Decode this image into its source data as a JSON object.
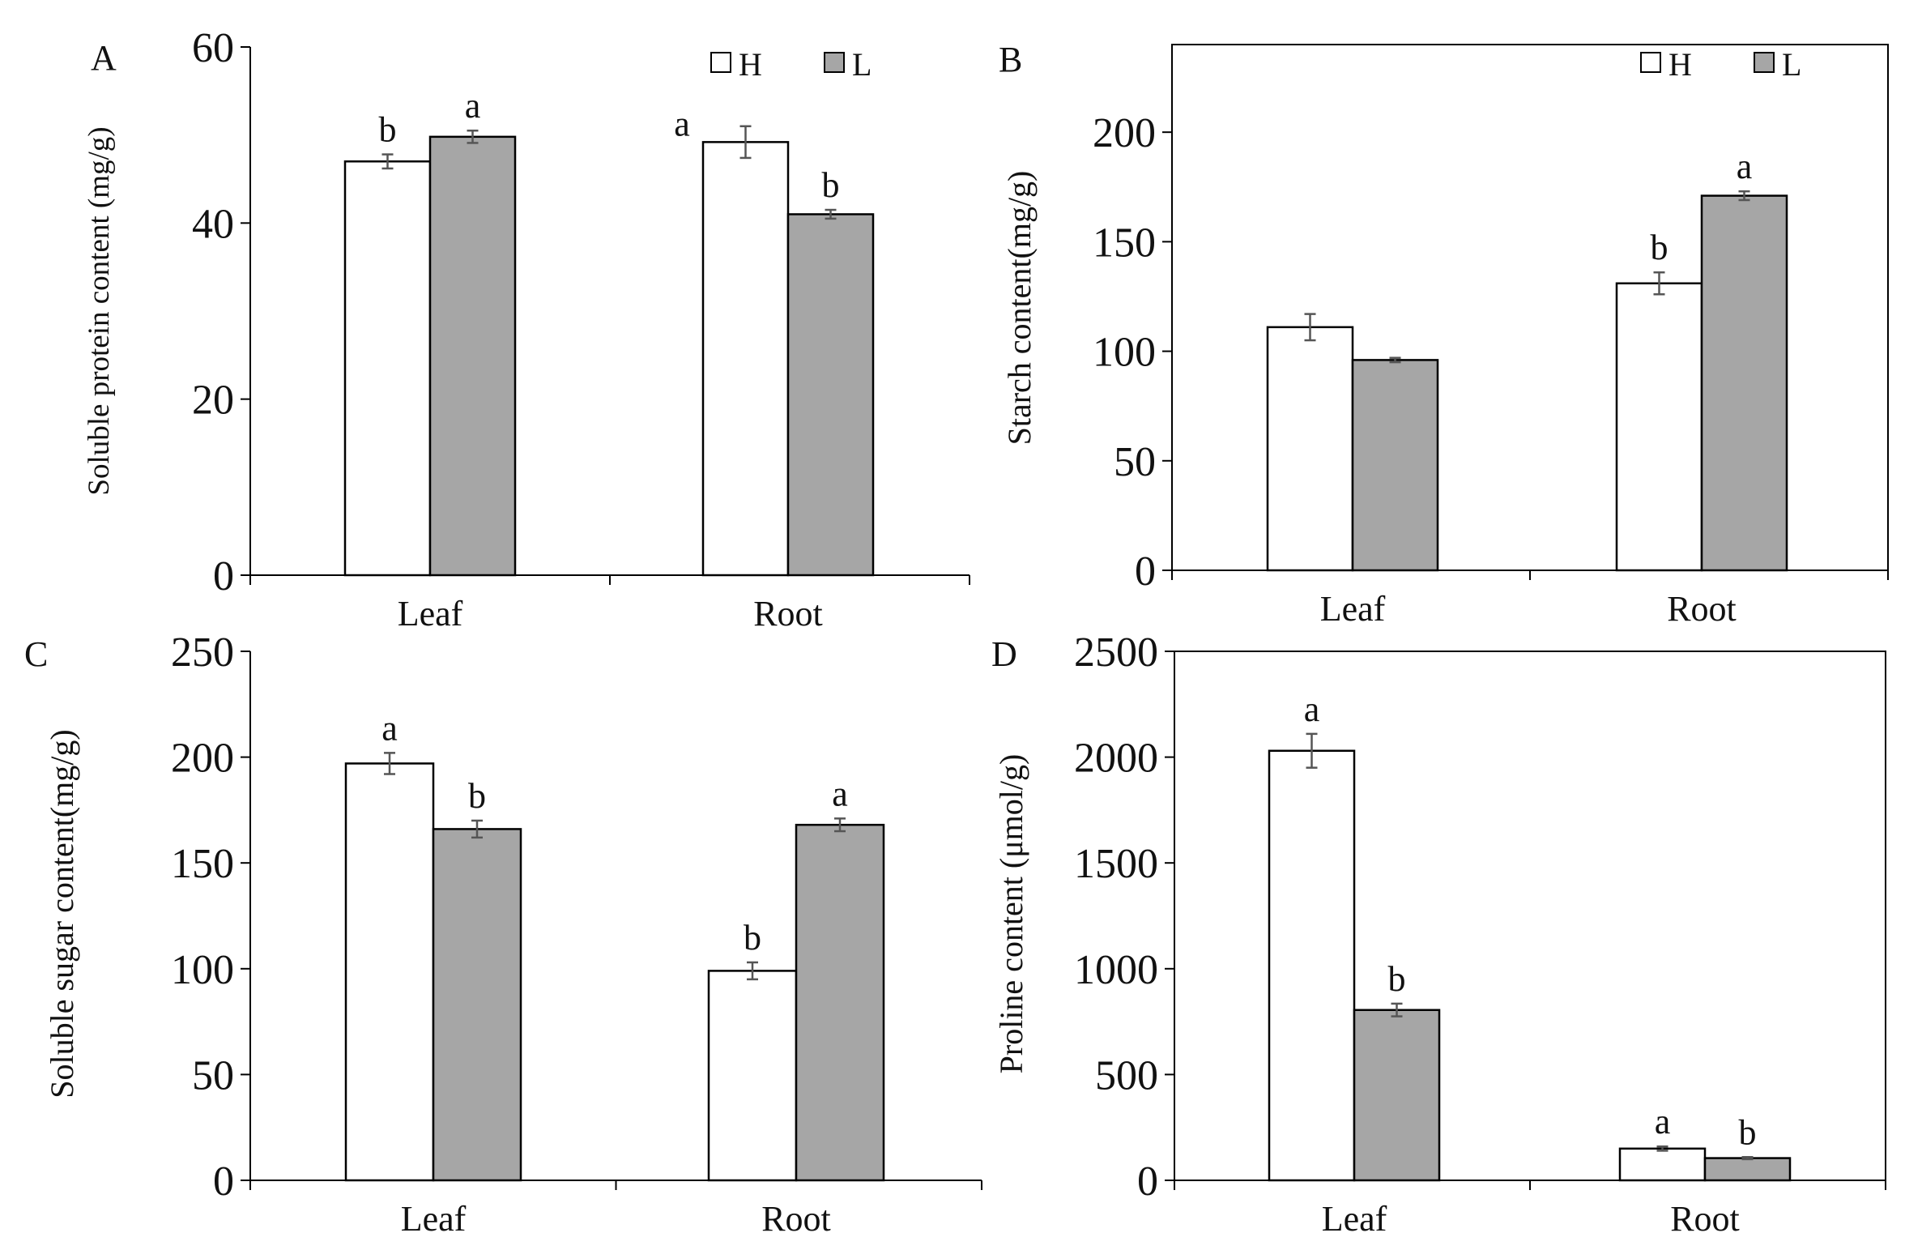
{
  "colors": {
    "H": "#ffffff",
    "L": "#a6a6a6",
    "stroke": "#000000",
    "error": "#555555"
  },
  "chart_data": [
    {
      "panel": "A",
      "type": "bar",
      "ylabel": "Soluble protein content (mg/g)",
      "ylim": [
        0,
        60
      ],
      "yticks": [
        "0",
        "20",
        "40",
        "60"
      ],
      "categories": [
        "Leaf",
        "Root"
      ],
      "legend": [
        "H",
        "L"
      ],
      "series": [
        {
          "name": "H",
          "values": [
            47,
            49.2
          ],
          "errors": [
            0.8,
            1.8
          ],
          "labels": [
            "b",
            "a"
          ]
        },
        {
          "name": "L",
          "values": [
            49.8,
            41
          ],
          "errors": [
            0.7,
            0.5
          ],
          "labels": [
            "a",
            "b"
          ]
        }
      ]
    },
    {
      "panel": "B",
      "type": "bar",
      "ylabel": "Starch content(mg/g)",
      "ylim": [
        0,
        240
      ],
      "yticks": [
        "0",
        "50",
        "100",
        "150",
        "200"
      ],
      "categories": [
        "Leaf",
        "Root"
      ],
      "legend": [
        "H",
        "L"
      ],
      "series": [
        {
          "name": "H",
          "values": [
            111,
            131
          ],
          "errors": [
            6,
            5
          ],
          "labels": [
            "",
            "b"
          ]
        },
        {
          "name": "L",
          "values": [
            96,
            171
          ],
          "errors": [
            1,
            2
          ],
          "labels": [
            "",
            "a"
          ]
        }
      ]
    },
    {
      "panel": "C",
      "type": "bar",
      "ylabel": "Soluble sugar content(mg/g)",
      "ylim": [
        0,
        250
      ],
      "yticks": [
        "0",
        "50",
        "100",
        "150",
        "200",
        "250"
      ],
      "categories": [
        "Leaf",
        "Root"
      ],
      "legend": [],
      "series": [
        {
          "name": "H",
          "values": [
            197,
            99
          ],
          "errors": [
            5,
            4
          ],
          "labels": [
            "a",
            "b"
          ]
        },
        {
          "name": "L",
          "values": [
            166,
            168
          ],
          "errors": [
            4,
            3
          ],
          "labels": [
            "b",
            "a"
          ]
        }
      ]
    },
    {
      "panel": "D",
      "type": "bar",
      "ylabel": "Proline content (μmol/g)",
      "ylim": [
        0,
        2500
      ],
      "yticks": [
        "0",
        "500",
        "1000",
        "1500",
        "2000",
        "2500"
      ],
      "categories": [
        "Leaf",
        "Root"
      ],
      "legend": [],
      "series": [
        {
          "name": "H",
          "values": [
            2030,
            150
          ],
          "errors": [
            80,
            10
          ],
          "labels": [
            "a",
            "a"
          ]
        },
        {
          "name": "L",
          "values": [
            805,
            105
          ],
          "errors": [
            30,
            5
          ],
          "labels": [
            "b",
            "b"
          ]
        }
      ]
    }
  ]
}
